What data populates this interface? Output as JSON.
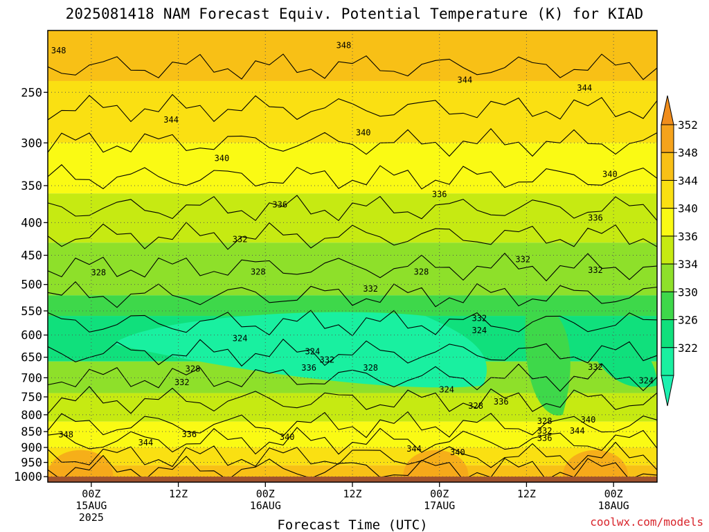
{
  "chart_data": {
    "type": "heatmap",
    "title": "2025081418 NAM Forecast Equiv. Potential Temperature (K) for KIAD",
    "xlabel": "Forecast Time (UTC)",
    "ylabel": "",
    "x_ticks": [
      {
        "label": [
          "00Z",
          "15AUG",
          "2025"
        ],
        "hours": 6
      },
      {
        "label": [
          "12Z"
        ],
        "hours": 18
      },
      {
        "label": [
          "00Z",
          "16AUG"
        ],
        "hours": 30
      },
      {
        "label": [
          "12Z"
        ],
        "hours": 42
      },
      {
        "label": [
          "00Z",
          "17AUG"
        ],
        "hours": 54
      },
      {
        "label": [
          "12Z"
        ],
        "hours": 66
      },
      {
        "label": [
          "00Z",
          "18AUG"
        ],
        "hours": 78
      }
    ],
    "x_range_hours": [
      0,
      84
    ],
    "y_ticks": [
      250,
      300,
      350,
      400,
      450,
      500,
      550,
      600,
      650,
      700,
      750,
      800,
      850,
      900,
      950,
      1000
    ],
    "y_range_hPa": [
      200,
      1020
    ],
    "y_scale": "log",
    "colorbar": {
      "levels": [
        352,
        348,
        344,
        340,
        336,
        334,
        330,
        326,
        322
      ],
      "colors": [
        "#f5a31c",
        "#f8c016",
        "#fae012",
        "#fafa14",
        "#c6ea12",
        "#8ee02a",
        "#3ed84a",
        "#10e07c",
        "#19f0a0"
      ],
      "top_arrow_color": "#f08d1c",
      "bottom_arrow_color": "#1cf0b0"
    },
    "contour_labels": [
      {
        "text": "348",
        "hours": 1.5,
        "p": 215
      },
      {
        "text": "348",
        "hours": 40.8,
        "p": 211
      },
      {
        "text": "344",
        "hours": 57.5,
        "p": 239
      },
      {
        "text": "344",
        "hours": 74,
        "p": 246
      },
      {
        "text": "344",
        "hours": 17,
        "p": 276
      },
      {
        "text": "340",
        "hours": 43.5,
        "p": 289
      },
      {
        "text": "340",
        "hours": 24,
        "p": 317
      },
      {
        "text": "340",
        "hours": 77.5,
        "p": 336
      },
      {
        "text": "336",
        "hours": 54,
        "p": 361
      },
      {
        "text": "336",
        "hours": 32,
        "p": 375
      },
      {
        "text": "336",
        "hours": 75.5,
        "p": 393
      },
      {
        "text": "332",
        "hours": 26.5,
        "p": 425
      },
      {
        "text": "332",
        "hours": 65.5,
        "p": 457
      },
      {
        "text": "332",
        "hours": 75.5,
        "p": 475
      },
      {
        "text": "328",
        "hours": 7,
        "p": 479
      },
      {
        "text": "328",
        "hours": 29,
        "p": 478
      },
      {
        "text": "328",
        "hours": 51.5,
        "p": 478
      },
      {
        "text": "332",
        "hours": 44.5,
        "p": 508
      },
      {
        "text": "332",
        "hours": 59.5,
        "p": 565
      },
      {
        "text": "324",
        "hours": 59.5,
        "p": 590
      },
      {
        "text": "324",
        "hours": 26.5,
        "p": 607
      },
      {
        "text": "324",
        "hours": 36.5,
        "p": 637
      },
      {
        "text": "332",
        "hours": 38.5,
        "p": 656
      },
      {
        "text": "336",
        "hours": 36,
        "p": 675
      },
      {
        "text": "328",
        "hours": 44.5,
        "p": 675
      },
      {
        "text": "328",
        "hours": 20,
        "p": 678
      },
      {
        "text": "332",
        "hours": 75.5,
        "p": 674
      },
      {
        "text": "332",
        "hours": 18.5,
        "p": 712
      },
      {
        "text": "324",
        "hours": 82.5,
        "p": 707
      },
      {
        "text": "324",
        "hours": 55,
        "p": 731
      },
      {
        "text": "336",
        "hours": 62.5,
        "p": 763
      },
      {
        "text": "328",
        "hours": 59,
        "p": 775
      },
      {
        "text": "328",
        "hours": 68.5,
        "p": 819
      },
      {
        "text": "340",
        "hours": 74.5,
        "p": 815
      },
      {
        "text": "332",
        "hours": 68.5,
        "p": 848
      },
      {
        "text": "344",
        "hours": 73,
        "p": 848
      },
      {
        "text": "336",
        "hours": 68.5,
        "p": 870
      },
      {
        "text": "348",
        "hours": 2.5,
        "p": 860
      },
      {
        "text": "336",
        "hours": 19.5,
        "p": 858
      },
      {
        "text": "340",
        "hours": 33,
        "p": 867
      },
      {
        "text": "344",
        "hours": 13.5,
        "p": 885
      },
      {
        "text": "344",
        "hours": 50.5,
        "p": 905
      },
      {
        "text": "340",
        "hours": 56.5,
        "p": 916
      }
    ],
    "surface_color": "#a0522d",
    "grid": true
  },
  "credit": "coolwx.com/models"
}
